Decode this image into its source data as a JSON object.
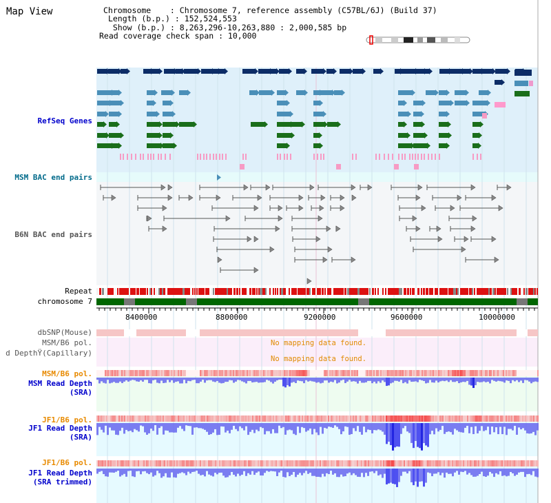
{
  "view_title": "Map View",
  "header": {
    "line1": "Chromosome    : Chromosome 7, reference assembly (C57BL/6J) (Build 37)",
    "line2": "Length (b.p.) : 152,524,553",
    "line3": "Show (b.p.) : 8,263,296-10,263,880 : 2,000,585 bp",
    "line4": "Read coverage check span : 10,000"
  },
  "tracks": {
    "refseq": "RefSeq Genes",
    "msm_bac": "MSM BAC end pairs",
    "b6n_bac": "B6N BAC end pairs",
    "repeat": "Repeat",
    "chromosome": "chromosome 7",
    "dbsnp": "dbSNP(Mouse)",
    "msm_pol_top": "MSM/B6 pol.",
    "depth_capillary": "d DepthŸ(Capillary)",
    "msm_pol": "MSM/B6 pol.",
    "msm_depth_1": "MSM Read Depth",
    "msm_depth_2": "(SRA)",
    "jf1_pol_1": "JF1/B6 pol.",
    "jf1_depth_1": "JF1 Read Depth",
    "jf1_depth_1b": "(SRA)",
    "jf1_pol_2": "JF1/B6 pol.",
    "jf1_depth_2": "JF1 Read Depth",
    "jf1_depth_2b": "(SRA trimmed)"
  },
  "axis_ticks": [
    "8400000",
    "8800000",
    "9200000",
    "9600000",
    "10000000"
  ],
  "messages": {
    "no_data_1": "No mapping data found.",
    "no_data_2": "No mapping data found."
  },
  "colors": {
    "refseq_bg": "#dff0fa",
    "bac_bg": "#f4f6f8",
    "repeat_red": "#dd1111",
    "chrom_green": "#006600",
    "dbsnp_pink": "#f6c6c6",
    "depth_blue": "#6666ee",
    "depth_bg": "#eefcf0",
    "jf1_bg": "#e6faff"
  }
}
